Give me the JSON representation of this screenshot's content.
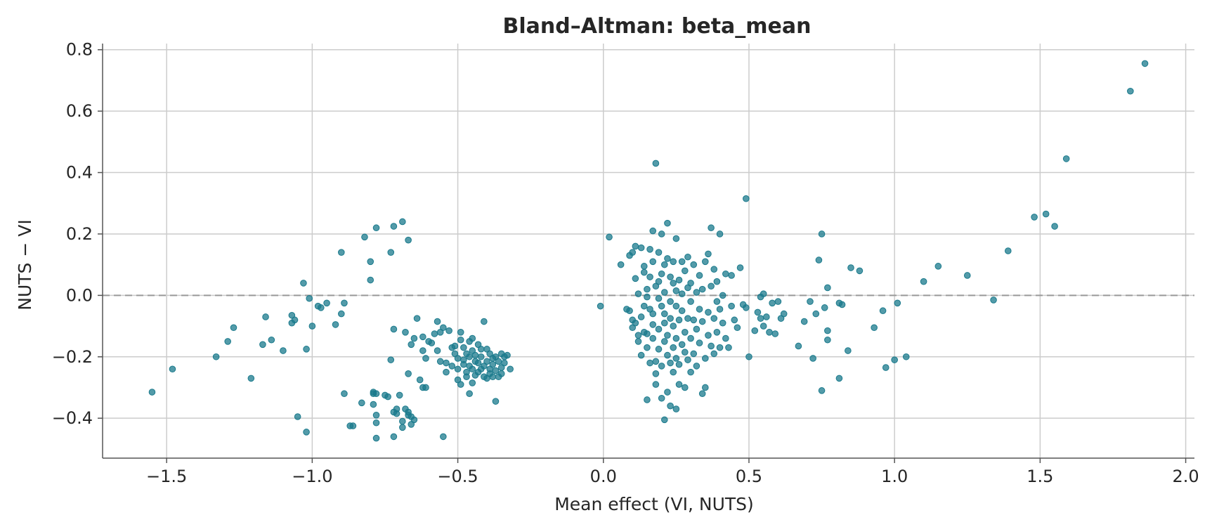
{
  "chart_data": {
    "type": "scatter",
    "title": "Bland–Altman: beta_mean",
    "xlabel": "Mean effect (VI, NUTS)",
    "ylabel": "NUTS − VI",
    "xlim": [
      -1.72,
      2.03
    ],
    "ylim": [
      -0.53,
      0.82
    ],
    "x_ticks": [
      -1.5,
      -1.0,
      -0.5,
      0.0,
      0.5,
      1.0,
      1.5,
      2.0
    ],
    "x_tick_labels": [
      "−1.5",
      "−1.0",
      "−0.5",
      "0.0",
      "0.5",
      "1.0",
      "1.5",
      "2.0"
    ],
    "y_ticks": [
      -0.4,
      -0.2,
      0.0,
      0.2,
      0.4,
      0.6,
      0.8
    ],
    "y_tick_labels": [
      "−0.4",
      "−0.2",
      "0.0",
      "0.2",
      "0.4",
      "0.6",
      "0.8"
    ],
    "grid": true,
    "reference_line_y": 0.0,
    "marker_color": "#1a7a8c",
    "reference_line_color": "#999999",
    "points": [
      [
        -1.55,
        -0.315
      ],
      [
        -1.48,
        -0.24
      ],
      [
        -1.33,
        -0.2
      ],
      [
        -1.29,
        -0.15
      ],
      [
        -1.27,
        -0.105
      ],
      [
        -1.21,
        -0.27
      ],
      [
        -1.17,
        -0.16
      ],
      [
        -1.16,
        -0.07
      ],
      [
        -1.14,
        -0.145
      ],
      [
        -1.1,
        -0.18
      ],
      [
        -1.07,
        -0.065
      ],
      [
        -1.07,
        -0.09
      ],
      [
        -1.06,
        -0.08
      ],
      [
        -1.05,
        -0.395
      ],
      [
        -1.03,
        0.04
      ],
      [
        -1.02,
        -0.445
      ],
      [
        -1.02,
        -0.175
      ],
      [
        -1.01,
        -0.01
      ],
      [
        -1.0,
        -0.1
      ],
      [
        -0.98,
        -0.035
      ],
      [
        -0.97,
        -0.04
      ],
      [
        -0.95,
        -0.025
      ],
      [
        -0.92,
        -0.095
      ],
      [
        -0.9,
        0.14
      ],
      [
        -0.9,
        -0.06
      ],
      [
        -0.89,
        -0.025
      ],
      [
        -0.89,
        -0.32
      ],
      [
        -0.87,
        -0.425
      ],
      [
        -0.86,
        -0.425
      ],
      [
        -0.83,
        -0.35
      ],
      [
        -0.82,
        0.19
      ],
      [
        -0.8,
        0.05
      ],
      [
        -0.8,
        0.11
      ],
      [
        -0.79,
        -0.315
      ],
      [
        -0.79,
        -0.32
      ],
      [
        -0.79,
        -0.355
      ],
      [
        -0.78,
        0.22
      ],
      [
        -0.78,
        -0.32
      ],
      [
        -0.78,
        -0.39
      ],
      [
        -0.78,
        -0.415
      ],
      [
        -0.78,
        -0.465
      ],
      [
        -0.75,
        -0.325
      ],
      [
        -0.74,
        -0.33
      ],
      [
        -0.73,
        0.14
      ],
      [
        -0.73,
        -0.21
      ],
      [
        -0.72,
        0.225
      ],
      [
        -0.72,
        -0.11
      ],
      [
        -0.72,
        -0.38
      ],
      [
        -0.72,
        -0.46
      ],
      [
        -0.71,
        -0.37
      ],
      [
        -0.71,
        -0.385
      ],
      [
        -0.7,
        -0.325
      ],
      [
        -0.69,
        0.24
      ],
      [
        -0.69,
        -0.41
      ],
      [
        -0.69,
        -0.43
      ],
      [
        -0.68,
        -0.12
      ],
      [
        -0.68,
        -0.37
      ],
      [
        -0.67,
        -0.38
      ],
      [
        -0.67,
        -0.255
      ],
      [
        -0.67,
        0.18
      ],
      [
        -0.67,
        -0.39
      ],
      [
        -0.66,
        -0.42
      ],
      [
        -0.66,
        -0.395
      ],
      [
        -0.66,
        -0.16
      ],
      [
        -0.65,
        -0.14
      ],
      [
        -0.65,
        -0.405
      ],
      [
        -0.64,
        -0.075
      ],
      [
        -0.63,
        -0.275
      ],
      [
        -0.62,
        -0.3
      ],
      [
        -0.62,
        -0.135
      ],
      [
        -0.62,
        -0.18
      ],
      [
        -0.61,
        -0.205
      ],
      [
        -0.61,
        -0.3
      ],
      [
        -0.6,
        -0.15
      ],
      [
        -0.59,
        -0.155
      ],
      [
        -0.58,
        -0.125
      ],
      [
        -0.57,
        -0.085
      ],
      [
        -0.57,
        -0.18
      ],
      [
        -0.56,
        -0.12
      ],
      [
        -0.56,
        -0.215
      ],
      [
        -0.55,
        -0.46
      ],
      [
        -0.55,
        -0.105
      ],
      [
        -0.54,
        -0.22
      ],
      [
        -0.54,
        -0.25
      ],
      [
        -0.53,
        -0.115
      ],
      [
        -0.52,
        -0.17
      ],
      [
        -0.52,
        -0.23
      ],
      [
        -0.51,
        -0.165
      ],
      [
        -0.51,
        -0.19
      ],
      [
        -0.5,
        -0.205
      ],
      [
        -0.5,
        -0.24
      ],
      [
        -0.5,
        -0.275
      ],
      [
        -0.49,
        -0.145
      ],
      [
        -0.49,
        -0.12
      ],
      [
        -0.49,
        -0.29
      ],
      [
        -0.48,
        -0.17
      ],
      [
        -0.48,
        -0.21
      ],
      [
        -0.48,
        -0.225
      ],
      [
        -0.47,
        -0.19
      ],
      [
        -0.47,
        -0.25
      ],
      [
        -0.47,
        -0.265
      ],
      [
        -0.46,
        -0.15
      ],
      [
        -0.46,
        -0.2
      ],
      [
        -0.46,
        -0.23
      ],
      [
        -0.46,
        -0.32
      ],
      [
        -0.45,
        -0.14
      ],
      [
        -0.45,
        -0.18
      ],
      [
        -0.45,
        -0.24
      ],
      [
        -0.45,
        -0.285
      ],
      [
        -0.44,
        -0.195
      ],
      [
        -0.44,
        -0.215
      ],
      [
        -0.44,
        -0.26
      ],
      [
        -0.43,
        -0.16
      ],
      [
        -0.43,
        -0.25
      ],
      [
        -0.43,
        -0.22
      ],
      [
        -0.42,
        -0.175
      ],
      [
        -0.42,
        -0.2
      ],
      [
        -0.42,
        -0.24
      ],
      [
        -0.41,
        -0.085
      ],
      [
        -0.41,
        -0.265
      ],
      [
        -0.41,
        -0.23
      ],
      [
        -0.4,
        -0.175
      ],
      [
        -0.4,
        -0.215
      ],
      [
        -0.4,
        -0.27
      ],
      [
        -0.39,
        -0.19
      ],
      [
        -0.39,
        -0.24
      ],
      [
        -0.39,
        -0.255
      ],
      [
        -0.38,
        -0.205
      ],
      [
        -0.38,
        -0.225
      ],
      [
        -0.38,
        -0.265
      ],
      [
        -0.37,
        -0.2
      ],
      [
        -0.37,
        -0.245
      ],
      [
        -0.37,
        -0.345
      ],
      [
        -0.36,
        -0.215
      ],
      [
        -0.36,
        -0.265
      ],
      [
        -0.35,
        -0.19
      ],
      [
        -0.35,
        -0.235
      ],
      [
        -0.35,
        -0.255
      ],
      [
        -0.34,
        -0.2
      ],
      [
        -0.34,
        -0.22
      ],
      [
        -0.33,
        -0.195
      ],
      [
        -0.32,
        -0.24
      ],
      [
        -0.01,
        -0.035
      ],
      [
        0.02,
        0.19
      ],
      [
        0.06,
        0.1
      ],
      [
        0.08,
        -0.045
      ],
      [
        0.09,
        0.13
      ],
      [
        0.09,
        -0.05
      ],
      [
        0.1,
        0.14
      ],
      [
        0.1,
        -0.08
      ],
      [
        0.1,
        -0.105
      ],
      [
        0.11,
        0.055
      ],
      [
        0.11,
        -0.09
      ],
      [
        0.11,
        0.16
      ],
      [
        0.12,
        -0.13
      ],
      [
        0.12,
        -0.15
      ],
      [
        0.12,
        0.005
      ],
      [
        0.13,
        0.155
      ],
      [
        0.13,
        -0.07
      ],
      [
        0.13,
        -0.195
      ],
      [
        0.14,
        0.075
      ],
      [
        0.14,
        0.095
      ],
      [
        0.14,
        -0.035
      ],
      [
        0.14,
        -0.12
      ],
      [
        0.15,
        0.02
      ],
      [
        0.15,
        -0.005
      ],
      [
        0.15,
        -0.125
      ],
      [
        0.15,
        -0.17
      ],
      [
        0.15,
        -0.34
      ],
      [
        0.16,
        0.15
      ],
      [
        0.16,
        0.06
      ],
      [
        0.16,
        -0.045
      ],
      [
        0.16,
        -0.22
      ],
      [
        0.17,
        0.21
      ],
      [
        0.17,
        0.11
      ],
      [
        0.17,
        -0.06
      ],
      [
        0.17,
        -0.095
      ],
      [
        0.17,
        -0.14
      ],
      [
        0.18,
        0.43
      ],
      [
        0.18,
        0.03
      ],
      [
        0.18,
        -0.215
      ],
      [
        0.18,
        -0.255
      ],
      [
        0.18,
        -0.29
      ],
      [
        0.19,
        0.14
      ],
      [
        0.19,
        0.045
      ],
      [
        0.19,
        -0.01
      ],
      [
        0.19,
        -0.11
      ],
      [
        0.19,
        -0.175
      ],
      [
        0.2,
        0.2
      ],
      [
        0.2,
        0.07
      ],
      [
        0.2,
        -0.035
      ],
      [
        0.2,
        -0.23
      ],
      [
        0.2,
        -0.335
      ],
      [
        0.21,
        0.1
      ],
      [
        0.21,
        0.01
      ],
      [
        0.21,
        -0.06
      ],
      [
        0.21,
        -0.09
      ],
      [
        0.21,
        -0.15
      ],
      [
        0.21,
        -0.405
      ],
      [
        0.22,
        0.235
      ],
      [
        0.22,
        0.12
      ],
      [
        0.22,
        -0.13
      ],
      [
        0.22,
        -0.195
      ],
      [
        0.22,
        -0.315
      ],
      [
        0.23,
        0.06
      ],
      [
        0.23,
        -0.02
      ],
      [
        0.23,
        -0.075
      ],
      [
        0.23,
        -0.22
      ],
      [
        0.23,
        -0.36
      ],
      [
        0.24,
        0.11
      ],
      [
        0.24,
        0.04
      ],
      [
        0.24,
        -0.1
      ],
      [
        0.24,
        -0.17
      ],
      [
        0.24,
        -0.25
      ],
      [
        0.25,
        0.185
      ],
      [
        0.25,
        0.015
      ],
      [
        0.25,
        -0.035
      ],
      [
        0.25,
        -0.14
      ],
      [
        0.25,
        -0.205
      ],
      [
        0.25,
        -0.37
      ],
      [
        0.26,
        0.05
      ],
      [
        0.26,
        -0.08
      ],
      [
        0.26,
        -0.225
      ],
      [
        0.26,
        -0.29
      ],
      [
        0.27,
        0.11
      ],
      [
        0.27,
        0.005
      ],
      [
        0.27,
        -0.05
      ],
      [
        0.27,
        -0.16
      ],
      [
        0.28,
        0.08
      ],
      [
        0.28,
        -0.12
      ],
      [
        0.28,
        -0.185
      ],
      [
        0.28,
        -0.3
      ],
      [
        0.29,
        0.125
      ],
      [
        0.29,
        0.025
      ],
      [
        0.29,
        -0.075
      ],
      [
        0.29,
        -0.21
      ],
      [
        0.3,
        0.04
      ],
      [
        0.3,
        -0.02
      ],
      [
        0.3,
        -0.14
      ],
      [
        0.3,
        -0.25
      ],
      [
        0.31,
        0.1
      ],
      [
        0.31,
        -0.08
      ],
      [
        0.31,
        -0.19
      ],
      [
        0.32,
        0.01
      ],
      [
        0.32,
        -0.11
      ],
      [
        0.32,
        -0.23
      ],
      [
        0.33,
        0.065
      ],
      [
        0.33,
        -0.045
      ],
      [
        0.33,
        -0.155
      ],
      [
        0.34,
        -0.32
      ],
      [
        0.34,
        0.02
      ],
      [
        0.34,
        -0.085
      ],
      [
        0.35,
        0.11
      ],
      [
        0.35,
        -0.205
      ],
      [
        0.35,
        -0.3
      ],
      [
        0.36,
        0.135
      ],
      [
        0.36,
        -0.055
      ],
      [
        0.36,
        -0.13
      ],
      [
        0.37,
        0.22
      ],
      [
        0.37,
        0.03
      ],
      [
        0.37,
        -0.165
      ],
      [
        0.38,
        0.085
      ],
      [
        0.38,
        -0.075
      ],
      [
        0.38,
        -0.19
      ],
      [
        0.39,
        0.045
      ],
      [
        0.39,
        -0.02
      ],
      [
        0.39,
        -0.12
      ],
      [
        0.4,
        0.2
      ],
      [
        0.4,
        -0.045
      ],
      [
        0.4,
        -0.17
      ],
      [
        0.41,
        0.0
      ],
      [
        0.41,
        -0.09
      ],
      [
        0.42,
        0.07
      ],
      [
        0.42,
        -0.14
      ],
      [
        0.43,
        -0.17
      ],
      [
        0.44,
        0.065
      ],
      [
        0.44,
        -0.035
      ],
      [
        0.45,
        -0.08
      ],
      [
        0.46,
        -0.105
      ],
      [
        0.47,
        0.09
      ],
      [
        0.48,
        -0.03
      ],
      [
        0.49,
        -0.04
      ],
      [
        0.49,
        0.315
      ],
      [
        0.5,
        -0.2
      ],
      [
        0.52,
        -0.115
      ],
      [
        0.53,
        -0.055
      ],
      [
        0.54,
        -0.005
      ],
      [
        0.54,
        -0.075
      ],
      [
        0.55,
        0.005
      ],
      [
        0.55,
        -0.1
      ],
      [
        0.56,
        -0.07
      ],
      [
        0.57,
        -0.12
      ],
      [
        0.58,
        -0.025
      ],
      [
        0.59,
        -0.125
      ],
      [
        0.6,
        -0.02
      ],
      [
        0.61,
        -0.075
      ],
      [
        0.62,
        -0.06
      ],
      [
        0.67,
        -0.165
      ],
      [
        0.69,
        -0.085
      ],
      [
        0.71,
        -0.02
      ],
      [
        0.72,
        -0.205
      ],
      [
        0.73,
        -0.06
      ],
      [
        0.74,
        0.115
      ],
      [
        0.75,
        0.2
      ],
      [
        0.75,
        -0.31
      ],
      [
        0.76,
        -0.04
      ],
      [
        0.77,
        0.025
      ],
      [
        0.77,
        -0.115
      ],
      [
        0.77,
        -0.145
      ],
      [
        0.81,
        -0.27
      ],
      [
        0.81,
        -0.025
      ],
      [
        0.82,
        -0.03
      ],
      [
        0.84,
        -0.18
      ],
      [
        0.85,
        0.09
      ],
      [
        0.88,
        0.08
      ],
      [
        0.93,
        -0.105
      ],
      [
        0.96,
        -0.05
      ],
      [
        0.97,
        -0.235
      ],
      [
        1.0,
        -0.21
      ],
      [
        1.01,
        -0.025
      ],
      [
        1.04,
        -0.2
      ],
      [
        1.1,
        0.045
      ],
      [
        1.15,
        0.095
      ],
      [
        1.25,
        0.065
      ],
      [
        1.34,
        -0.015
      ],
      [
        1.39,
        0.145
      ],
      [
        1.48,
        0.255
      ],
      [
        1.52,
        0.265
      ],
      [
        1.55,
        0.225
      ],
      [
        1.59,
        0.445
      ],
      [
        1.81,
        0.665
      ],
      [
        1.86,
        0.755
      ]
    ]
  }
}
